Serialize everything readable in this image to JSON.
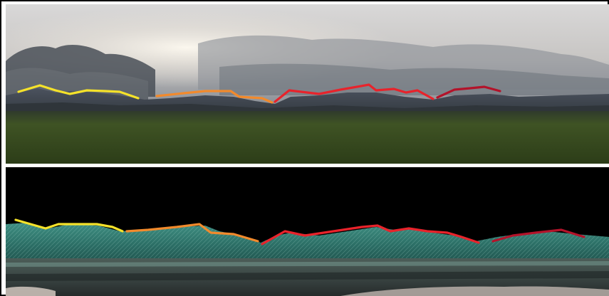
{
  "figure": {
    "panels": [
      {
        "name": "photo-panel",
        "kind": "photograph of a mountain skyline under a cloudy sky with a green field in the foreground",
        "ridge_colors": [
          "#f5e22a",
          "#f28a2c",
          "#e8232b",
          "#b3132a"
        ]
      },
      {
        "name": "rendered-terrain-panel",
        "kind": "rendered terrain model with matching skyline on black background",
        "ridge_colors": [
          "#f5e22a",
          "#f28a2c",
          "#e8232b",
          "#b3132a"
        ]
      }
    ],
    "colors": {
      "sky_light": "#e6e4e2",
      "sky_dark": "#6e7682",
      "field": "#3d5221",
      "terrain": "#2d8c7c",
      "background_bottom": "#000000",
      "divider": "#ffffff",
      "border": "#000000"
    }
  }
}
